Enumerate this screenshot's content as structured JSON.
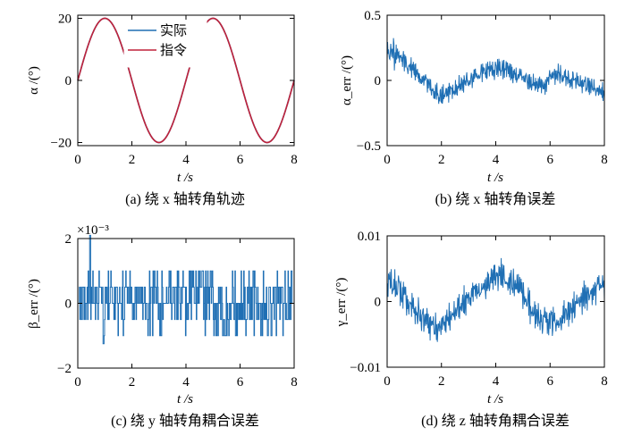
{
  "chart_data": [
    {
      "id": "a",
      "type": "line",
      "caption": "(a) 绕 x 轴转角轨迹",
      "xlabel": "t /s",
      "ylabel": "α /(°)",
      "xlim": [
        0,
        8
      ],
      "ylim": [
        -21,
        21
      ],
      "xticks": [
        0,
        2,
        4,
        6,
        8
      ],
      "yticks": [
        -20,
        0,
        20
      ],
      "ytick_labels": [
        "−20",
        "0",
        "20"
      ],
      "legend": {
        "position": "top-center",
        "entries": [
          "实际",
          "指令"
        ]
      },
      "series": [
        {
          "name": "实际",
          "color": "#1f6fb4",
          "kind": "sine",
          "amplitude": 20,
          "period": 4,
          "x0": 0,
          "x1": 8,
          "step": 0.05
        },
        {
          "name": "指令",
          "color": "#c0223a",
          "kind": "sine",
          "amplitude": 20,
          "period": 4,
          "x0": 0,
          "x1": 8,
          "step": 0.05
        }
      ]
    },
    {
      "id": "b",
      "type": "line",
      "caption": "(b) 绕 x 轴转角误差",
      "xlabel": "t /s",
      "ylabel": "α_err /(°)",
      "xlim": [
        0,
        8
      ],
      "ylim": [
        -0.5,
        0.5
      ],
      "xticks": [
        0,
        2,
        4,
        6,
        8
      ],
      "yticks": [
        -0.5,
        0,
        0.5
      ],
      "ytick_labels": [
        "−0.5",
        "0",
        "0.5"
      ],
      "series": [
        {
          "color": "#1f6fb4",
          "kind": "noisy",
          "x": [
            0,
            0.3,
            0.7,
            1.0,
            1.4,
            1.8,
            2.2,
            2.6,
            3.0,
            3.4,
            3.8,
            4.2,
            4.6,
            5.0,
            5.4,
            5.8,
            6.2,
            6.6,
            7.0,
            7.4,
            7.8,
            8.0
          ],
          "trend": [
            0.22,
            0.2,
            0.14,
            0.08,
            0.0,
            -0.1,
            -0.1,
            -0.05,
            0.0,
            0.05,
            0.08,
            0.1,
            0.06,
            0.02,
            -0.02,
            -0.04,
            0.05,
            0.02,
            0.0,
            -0.04,
            -0.06,
            -0.1
          ],
          "noise": [
            0.1,
            0.08,
            0.06,
            0.05,
            0.05,
            0.06,
            0.05,
            0.05,
            0.05,
            0.05,
            0.05,
            0.06,
            0.06,
            0.05,
            0.05,
            0.05,
            0.06,
            0.05,
            0.05,
            0.05,
            0.05,
            0.05
          ],
          "peak": [
            0.41,
            0.3,
            0.22,
            0.15,
            0.05,
            -0.02,
            0.0,
            0.05,
            0.08,
            0.12,
            0.15,
            0.17,
            0.12,
            0.08,
            0.05,
            0.04,
            0.15,
            0.08,
            0.06,
            0.02,
            0.0,
            -0.02
          ],
          "trough": [
            0.05,
            0.08,
            0.06,
            0.0,
            -0.08,
            -0.24,
            -0.18,
            -0.12,
            -0.08,
            -0.04,
            -0.02,
            0.0,
            -0.02,
            -0.04,
            -0.1,
            -0.12,
            -0.06,
            -0.05,
            -0.08,
            -0.12,
            -0.15,
            -0.16
          ]
        }
      ]
    },
    {
      "id": "c",
      "type": "line",
      "caption": "(c) 绕 y 轴转角耦合误差",
      "xlabel": "t /s",
      "ylabel": "β_err /(°)",
      "scale_label": "×10⁻³",
      "xlim": [
        0,
        8
      ],
      "ylim": [
        -2,
        2
      ],
      "xticks": [
        0,
        2,
        4,
        6,
        8
      ],
      "yticks": [
        -2,
        0,
        2
      ],
      "ytick_labels": [
        "−2",
        "0",
        "2"
      ],
      "series": [
        {
          "color": "#1f6fb4",
          "kind": "quantized",
          "levels": [
            -1.0,
            -0.5,
            0,
            0.5,
            1.0
          ],
          "spike_max": 2.1,
          "spike_min": -1.25
        }
      ]
    },
    {
      "id": "d",
      "type": "line",
      "caption": "(d) 绕 z 轴转角耦合误差",
      "xlabel": "t /s",
      "ylabel": "γ_err /(°)",
      "xlim": [
        0,
        8
      ],
      "ylim": [
        -0.01,
        0.01
      ],
      "xticks": [
        0,
        2,
        4,
        6,
        8
      ],
      "yticks": [
        -0.01,
        0,
        0.01
      ],
      "ytick_labels": [
        "−0.01",
        "0",
        "0.01"
      ],
      "series": [
        {
          "color": "#1f6fb4",
          "kind": "noisy",
          "x": [
            0,
            0.4,
            0.8,
            1.2,
            1.6,
            1.8,
            2.2,
            2.6,
            3.0,
            3.4,
            3.8,
            4.2,
            4.6,
            5.0,
            5.4,
            5.8,
            6.2,
            6.6,
            7.0,
            7.4,
            7.8,
            8.0
          ],
          "trend": [
            0.003,
            0.002,
            0.0,
            -0.002,
            -0.004,
            -0.004,
            -0.003,
            -0.001,
            0.001,
            0.002,
            0.003,
            0.004,
            0.003,
            0.001,
            -0.002,
            -0.003,
            -0.003,
            -0.002,
            0.0,
            0.001,
            0.002,
            0.002
          ],
          "noise": [
            0.0015,
            0.0015,
            0.0015,
            0.0015,
            0.0015,
            0.0015,
            0.0015,
            0.0015,
            0.0015,
            0.0015,
            0.0015,
            0.0015,
            0.0015,
            0.0015,
            0.0015,
            0.0015,
            0.0015,
            0.0015,
            0.0015,
            0.0015,
            0.0015,
            0.0015
          ],
          "peak": [
            0.006,
            0.005,
            0.003,
            0.001,
            -0.001,
            -0.001,
            0.0,
            0.002,
            0.004,
            0.005,
            0.006,
            0.0075,
            0.006,
            0.004,
            0.001,
            0.0,
            0.0,
            0.001,
            0.003,
            0.004,
            0.004,
            0.004
          ],
          "trough": [
            0.0,
            -0.001,
            -0.003,
            -0.005,
            -0.0068,
            -0.0068,
            -0.006,
            -0.004,
            -0.002,
            -0.001,
            0.0,
            0.001,
            0.0,
            -0.002,
            -0.005,
            -0.0068,
            -0.0065,
            -0.005,
            -0.003,
            -0.002,
            0.0,
            0.0
          ]
        }
      ]
    }
  ]
}
